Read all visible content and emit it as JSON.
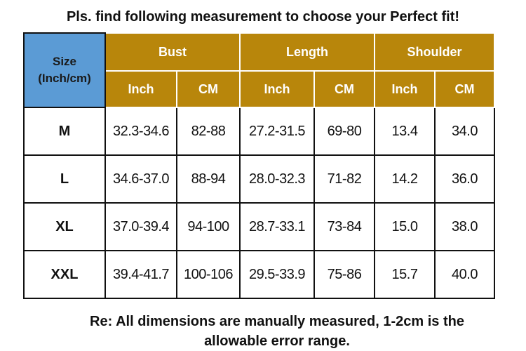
{
  "title": "Pls. find following measurement to choose your Perfect fit!",
  "table": {
    "corner_label_line1": "Size",
    "corner_label_line2": "(Inch/cm)",
    "groups": [
      "Bust",
      "Length",
      "Shoulder"
    ],
    "units": [
      "Inch",
      "CM",
      "Inch",
      "CM",
      "Inch",
      "CM"
    ],
    "rows": [
      {
        "size": "M",
        "values": [
          "32.3-34.6",
          "82-88",
          "27.2-31.5",
          "69-80",
          "13.4",
          "34.0"
        ]
      },
      {
        "size": "L",
        "values": [
          "34.6-37.0",
          "88-94",
          "28.0-32.3",
          "71-82",
          "14.2",
          "36.0"
        ]
      },
      {
        "size": "XL",
        "values": [
          "37.0-39.4",
          "94-100",
          "28.7-33.1",
          "73-84",
          "15.0",
          "38.0"
        ]
      },
      {
        "size": "XXL",
        "values": [
          "39.4-41.7",
          "100-106",
          "29.5-33.9",
          "75-86",
          "15.7",
          "40.0"
        ]
      }
    ],
    "colors": {
      "corner": "#5b9bd5",
      "header": "#b8860b"
    }
  },
  "note_line1": "Re: All dimensions are manually measured, 1-2cm is the",
  "note_line2": "allowable error range."
}
